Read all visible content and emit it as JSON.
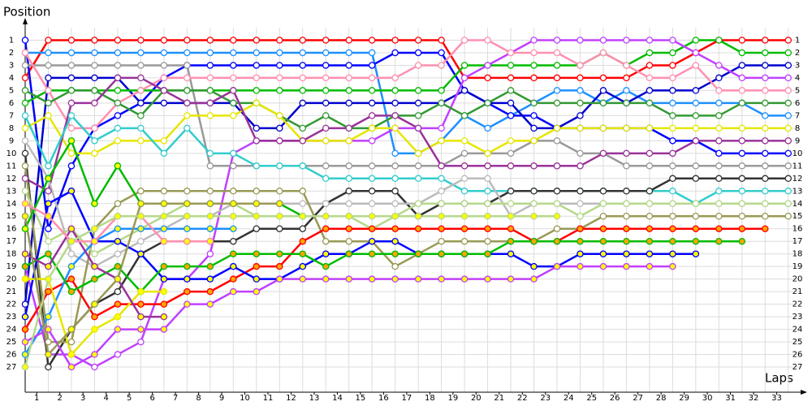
{
  "chart_data": {
    "type": "line",
    "y_label": "Position",
    "x_label": "Laps",
    "x": [
      0,
      1,
      2,
      3,
      4,
      5,
      6,
      7,
      8,
      9,
      10,
      11,
      12,
      13,
      14,
      15,
      16,
      17,
      18,
      19,
      20,
      21,
      22,
      23,
      24,
      25,
      26,
      27,
      28,
      29,
      30,
      31,
      32,
      33
    ],
    "xlim": [
      0,
      33.5
    ],
    "ylim": [
      29,
      0
    ],
    "xticks": [
      {
        "value": 0.5,
        "label": "1"
      },
      {
        "value": 1.5,
        "label": "2"
      },
      {
        "value": 2.5,
        "label": "3"
      },
      {
        "value": 3.5,
        "label": "4"
      },
      {
        "value": 4.5,
        "label": "5"
      },
      {
        "value": 5.5,
        "label": "6"
      },
      {
        "value": 6.5,
        "label": "7"
      },
      {
        "value": 7.5,
        "label": "8"
      },
      {
        "value": 8.5,
        "label": "9"
      },
      {
        "value": 9.5,
        "label": "10"
      },
      {
        "value": 10.5,
        "label": "11"
      },
      {
        "value": 11.5,
        "label": "12"
      },
      {
        "value": 12.5,
        "label": "13"
      },
      {
        "value": 13.5,
        "label": "14"
      },
      {
        "value": 14.5,
        "label": "15"
      },
      {
        "value": 15.5,
        "label": "16"
      },
      {
        "value": 16.5,
        "label": "17"
      },
      {
        "value": 17.5,
        "label": "18"
      },
      {
        "value": 18.5,
        "label": "19"
      },
      {
        "value": 19.5,
        "label": "20"
      },
      {
        "value": 20.5,
        "label": "21"
      },
      {
        "value": 21.5,
        "label": "22"
      },
      {
        "value": 22.5,
        "label": "23"
      },
      {
        "value": 23.5,
        "label": "24"
      },
      {
        "value": 24.5,
        "label": "25"
      },
      {
        "value": 25.5,
        "label": "26"
      },
      {
        "value": 26.5,
        "label": "27"
      },
      {
        "value": 27.5,
        "label": "28"
      },
      {
        "value": 28.5,
        "label": "29"
      },
      {
        "value": 29.5,
        "label": "30"
      },
      {
        "value": 30.5,
        "label": "31"
      },
      {
        "value": 31.5,
        "label": "32"
      },
      {
        "value": 32.5,
        "label": "33"
      }
    ],
    "yticks": [
      1,
      2,
      3,
      4,
      5,
      6,
      7,
      8,
      9,
      10,
      11,
      12,
      13,
      14,
      15,
      16,
      17,
      18,
      19,
      20,
      21,
      22,
      23,
      24,
      25,
      26,
      27
    ],
    "grid": true,
    "series": [
      {
        "color": "#ff0000",
        "marker_color": "#ffffff",
        "values": [
          4,
          1,
          1,
          1,
          1,
          1,
          1,
          1,
          1,
          1,
          1,
          1,
          1,
          1,
          1,
          1,
          1,
          1,
          1,
          4,
          4,
          4,
          4,
          4,
          4,
          4,
          4,
          3,
          3,
          2,
          1,
          1,
          1,
          1
        ]
      },
      {
        "color": "#1e90ff",
        "marker_color": "#ffffff",
        "values": [
          2,
          2,
          2,
          2,
          2,
          2,
          2,
          2,
          2,
          2,
          2,
          2,
          2,
          2,
          2,
          2,
          10,
          10,
          9,
          7,
          8,
          7,
          6,
          5,
          5,
          6,
          5,
          6,
          6,
          6,
          6,
          6,
          7,
          7
        ]
      },
      {
        "color": "#0000ff",
        "marker_color": "#ffffff",
        "values": [
          1,
          16,
          11,
          8,
          7,
          6,
          4,
          3,
          3,
          3,
          3,
          3,
          3,
          3,
          3,
          3,
          2,
          2,
          2,
          5,
          6,
          7,
          7,
          8,
          8,
          8,
          8,
          8,
          9,
          9,
          10,
          10,
          10,
          10
        ]
      },
      {
        "color": "#0000cc",
        "marker_color": "#ffffff",
        "values": [
          22,
          4,
          4,
          4,
          4,
          6,
          6,
          6,
          6,
          6,
          8,
          8,
          6,
          6,
          6,
          6,
          6,
          6,
          6,
          5,
          6,
          6,
          8,
          8,
          7,
          5,
          6,
          5,
          5,
          5,
          4,
          3,
          3,
          3
        ]
      },
      {
        "color": "#999999",
        "marker_color": "#ffffff",
        "values": [
          3,
          3,
          3,
          3,
          3,
          3,
          3,
          3,
          11,
          11,
          11,
          11,
          11,
          11,
          11,
          11,
          11,
          11,
          11,
          10,
          10,
          10,
          9,
          9,
          10,
          10,
          11,
          11,
          11,
          11,
          11,
          11,
          11,
          11
        ]
      },
      {
        "color": "#00bb00",
        "marker_color": "#ffffff",
        "values": [
          6,
          5,
          5,
          5,
          5,
          5,
          5,
          5,
          5,
          5,
          5,
          5,
          5,
          5,
          5,
          5,
          5,
          5,
          5,
          3,
          3,
          3,
          3,
          3,
          3,
          2,
          3,
          2,
          2,
          1,
          1,
          2,
          2,
          2
        ]
      },
      {
        "color": "#c040ff",
        "marker_color": "#ffffff",
        "values": [
          19,
          26,
          26,
          27,
          26,
          25,
          20,
          20,
          18,
          10,
          9,
          9,
          9,
          9,
          9,
          9,
          8,
          8,
          8,
          4,
          3,
          2,
          1,
          1,
          1,
          1,
          1,
          1,
          1,
          2,
          3,
          4,
          4,
          4
        ]
      },
      {
        "color": "#ff8fb0",
        "marker_color": "#ffffff",
        "values": [
          2,
          5,
          8,
          8,
          6,
          5,
          4,
          4,
          4,
          4,
          4,
          4,
          4,
          4,
          4,
          4,
          4,
          3,
          3,
          1,
          1,
          2,
          2,
          2,
          3,
          2,
          3,
          4,
          4,
          3,
          5,
          5,
          5,
          5
        ]
      },
      {
        "color": "#339933",
        "marker_color": "#ffffff",
        "values": [
          5,
          6,
          5,
          5,
          6,
          7,
          5,
          5,
          5,
          6,
          6,
          7,
          8,
          7,
          8,
          8,
          7,
          7,
          6,
          7,
          6,
          5,
          6,
          6,
          6,
          6,
          6,
          6,
          7,
          7,
          7,
          6,
          6,
          6
        ]
      },
      {
        "color": "#e6e600",
        "marker_color": "#ffffff",
        "values": [
          8,
          7,
          10,
          10,
          9,
          9,
          9,
          7,
          7,
          7,
          6,
          7,
          9,
          9,
          9,
          8,
          8,
          10,
          9,
          9,
          10,
          9,
          9,
          8,
          8,
          8,
          8,
          8,
          8,
          8,
          8,
          8,
          8,
          8
        ]
      },
      {
        "color": "#993399",
        "marker_color": "#ffffff",
        "values": [
          12,
          13,
          6,
          6,
          4,
          4,
          5,
          6,
          6,
          5,
          9,
          9,
          9,
          8,
          8,
          7,
          7,
          8,
          11,
          11,
          11,
          11,
          11,
          11,
          11,
          10,
          10,
          10,
          10,
          9,
          9,
          9,
          9,
          9
        ]
      },
      {
        "color": "#33cccc",
        "marker_color": "#ffffff",
        "values": [
          7,
          11,
          7,
          9,
          8,
          8,
          10,
          8,
          10,
          10,
          11,
          11,
          11,
          12,
          12,
          12,
          12,
          12,
          12,
          13,
          13,
          13,
          13,
          13,
          13,
          13,
          13,
          13,
          13,
          14,
          13,
          13,
          13,
          13
        ]
      },
      {
        "color": "#333333",
        "marker_color": "#ffffff",
        "values": [
          10,
          27,
          24,
          22,
          21,
          18,
          17,
          17,
          17,
          17,
          16,
          16,
          16,
          14,
          13,
          13,
          13,
          15,
          14,
          14,
          14,
          13,
          13,
          13,
          13,
          13,
          13,
          13,
          12,
          12,
          12,
          12,
          12,
          12
        ]
      },
      {
        "color": "#bbbbbb",
        "marker_color": "#ffffff",
        "values": [
          9,
          12,
          18,
          19,
          18,
          17,
          16,
          15,
          15,
          14,
          14,
          14,
          14,
          14,
          14,
          14,
          14,
          14,
          13,
          12,
          12,
          15,
          14,
          14,
          14,
          14,
          14,
          14,
          14,
          14,
          14,
          14,
          14,
          14
        ]
      },
      {
        "color": "#999955",
        "marker_color": "#ffffff",
        "values": [
          11,
          25,
          25,
          16,
          14,
          13,
          13,
          13,
          13,
          13,
          13,
          13,
          13,
          17,
          17,
          17,
          19,
          18,
          17,
          17,
          17,
          17,
          17,
          16,
          16,
          15,
          15,
          15,
          15,
          15,
          15,
          15,
          15,
          15
        ]
      },
      {
        "color": "#b5d88a",
        "marker_color": "#ffffff",
        "values": [
          13,
          17,
          16,
          18,
          17,
          16,
          15,
          14,
          14,
          14,
          15,
          15,
          15,
          15,
          15,
          16,
          15,
          14,
          14,
          14,
          14,
          14,
          14,
          14,
          15,
          14,
          14,
          14,
          14,
          14,
          14,
          14,
          14,
          14
        ]
      },
      {
        "color": "#00bb00",
        "marker_color": "#ffff00",
        "values": [
          16,
          12,
          9,
          14,
          11,
          14,
          14,
          14,
          14,
          14,
          14,
          14,
          15,
          null,
          null,
          null,
          null,
          null,
          null,
          null,
          null,
          null,
          null,
          null,
          null,
          null,
          null,
          null,
          null,
          null,
          null,
          null,
          null,
          null
        ]
      },
      {
        "color": "#ff0000",
        "marker_color": "#ffa500",
        "values": [
          24,
          21,
          20,
          23,
          22,
          22,
          22,
          21,
          21,
          20,
          19,
          19,
          17,
          16,
          16,
          16,
          16,
          16,
          16,
          16,
          16,
          16,
          17,
          17,
          16,
          16,
          16,
          16,
          16,
          16,
          16,
          16,
          16,
          null
        ]
      },
      {
        "color": "#1e90ff",
        "marker_color": "#ffff00",
        "values": [
          26,
          23,
          19,
          17,
          16,
          16,
          16,
          16,
          16,
          16,
          null,
          null,
          null,
          null,
          null,
          null,
          null,
          null,
          null,
          null,
          null,
          null,
          null,
          null,
          null,
          null,
          null,
          null,
          null,
          null,
          null,
          null,
          null,
          null
        ]
      },
      {
        "color": "#0000ff",
        "marker_color": "#ffff00",
        "values": [
          23,
          14,
          13,
          17,
          17,
          18,
          20,
          20,
          20,
          19,
          20,
          20,
          19,
          18,
          18,
          17,
          17,
          18,
          18,
          18,
          18,
          18,
          19,
          19,
          18,
          18,
          18,
          18,
          18,
          18,
          null,
          null,
          null,
          null
        ]
      },
      {
        "color": "#c040ff",
        "marker_color": "#ffff00",
        "values": [
          25,
          24,
          27,
          26,
          24,
          24,
          24,
          22,
          22,
          21,
          21,
          20,
          20,
          20,
          20,
          20,
          20,
          20,
          20,
          20,
          20,
          20,
          20,
          19,
          19,
          19,
          19,
          19,
          19,
          null,
          null,
          null,
          null,
          null
        ]
      },
      {
        "color": "#00bb00",
        "marker_color": "#ffa500",
        "values": [
          19,
          18,
          21,
          20,
          19,
          21,
          19,
          19,
          19,
          18,
          18,
          18,
          18,
          19,
          18,
          18,
          18,
          18,
          18,
          18,
          18,
          17,
          17,
          17,
          17,
          17,
          17,
          17,
          17,
          17,
          17,
          17,
          null,
          null
        ]
      },
      {
        "color": "#e6e600",
        "marker_color": "#ffff00",
        "values": [
          20,
          20,
          26,
          24,
          23,
          21,
          21,
          null,
          null,
          null,
          null,
          null,
          null,
          null,
          null,
          null,
          null,
          null,
          null,
          null,
          null,
          null,
          null,
          null,
          null,
          null,
          null,
          null,
          null,
          null,
          null,
          null,
          null,
          null
        ]
      },
      {
        "color": "#993399",
        "marker_color": "#ffff00",
        "values": [
          18,
          19,
          16,
          19,
          20,
          23,
          23,
          null,
          null,
          null,
          null,
          null,
          null,
          null,
          null,
          null,
          null,
          null,
          null,
          null,
          null,
          null,
          null,
          null,
          null,
          null,
          null,
          null,
          null,
          null,
          null,
          null,
          null,
          null
        ]
      },
      {
        "color": "#999955",
        "marker_color": "#ffff00",
        "values": [
          15,
          26,
          24,
          22,
          20,
          14,
          14,
          14,
          14,
          14,
          14,
          14,
          null,
          null,
          null,
          null,
          null,
          null,
          null,
          null,
          null,
          null,
          null,
          null,
          null,
          null,
          null,
          null,
          null,
          null,
          null,
          null,
          null,
          null
        ]
      },
      {
        "color": "#ff8fb0",
        "marker_color": "#ffff00",
        "values": [
          14,
          15,
          17,
          17,
          15,
          15,
          17,
          17,
          17,
          null,
          null,
          null,
          null,
          null,
          null,
          null,
          null,
          null,
          null,
          null,
          null,
          null,
          null,
          null,
          null,
          null,
          null,
          null,
          null,
          null,
          null,
          null,
          null,
          null
        ]
      },
      {
        "color": "#b5d88a",
        "marker_color": "#ffff00",
        "values": [
          27,
          20,
          17,
          16,
          15,
          15,
          15,
          15,
          15,
          15,
          15,
          15,
          15,
          15,
          15,
          15,
          15,
          15,
          15,
          15,
          15,
          15,
          15,
          15,
          null,
          null,
          null,
          null,
          null,
          null,
          null,
          null,
          null,
          null
        ]
      }
    ]
  }
}
